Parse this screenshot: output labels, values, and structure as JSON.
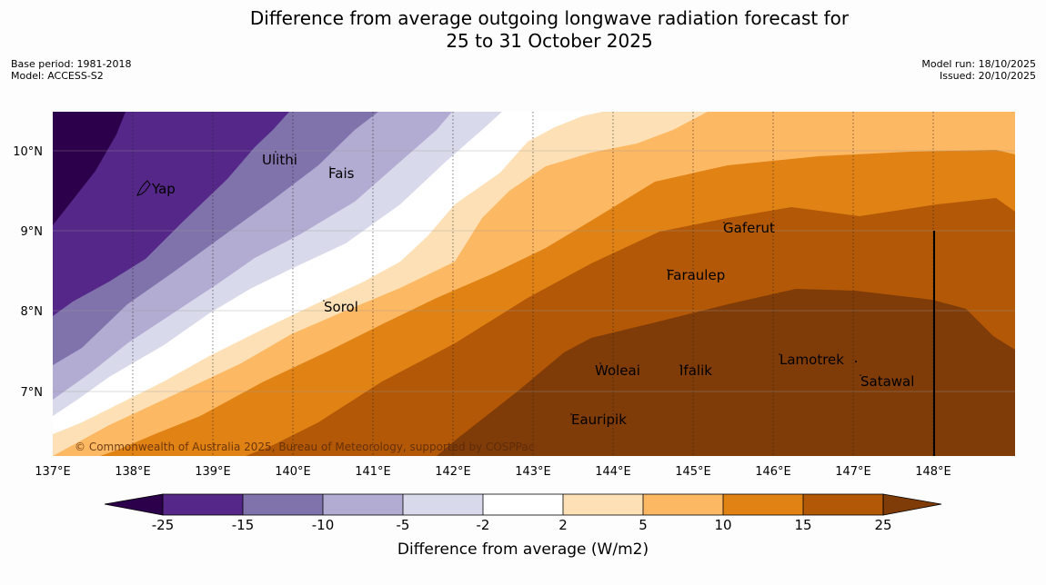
{
  "header": {
    "title_line1": "Difference from average outgoing longwave radiation forecast for",
    "title_line2": "25 to 31 October 2025",
    "base_period": "Base period: 1981-2018",
    "model": "Model: ACCESS-S2",
    "model_run": "Model run: 18/10/2025",
    "issued": "Issued: 20/10/2025"
  },
  "map": {
    "lon_ticks": [
      "137°E",
      "138°E",
      "139°E",
      "140°E",
      "141°E",
      "142°E",
      "143°E",
      "144°E",
      "145°E",
      "146°E",
      "147°E",
      "148°E"
    ],
    "lat_ticks": [
      "10°N",
      "9°N",
      "8°N",
      "7°N"
    ],
    "places": [
      "Yap",
      "Ulithi",
      "Fais",
      "Gaferut",
      "Faraulep",
      "Sorol",
      "Lamotrek",
      "Woleai",
      "Ifalik",
      "Satawal",
      "Eauripik"
    ],
    "copyright": "© Commonwealth of Australia 2025, Bureau of Meteorology, supported by COSPPac"
  },
  "colorbar": {
    "boundaries": [
      "-25",
      "-15",
      "-10",
      "-5",
      "-2",
      "2",
      "5",
      "10",
      "15",
      "25"
    ],
    "colors": [
      "#2d004b",
      "#542788",
      "#8073ac",
      "#b2abd2",
      "#d8daeb",
      "#ffffff",
      "#fee0b6",
      "#fdb863",
      "#e08214",
      "#b35806",
      "#7f3b08"
    ],
    "label": "Difference from average (W/m2)"
  }
}
